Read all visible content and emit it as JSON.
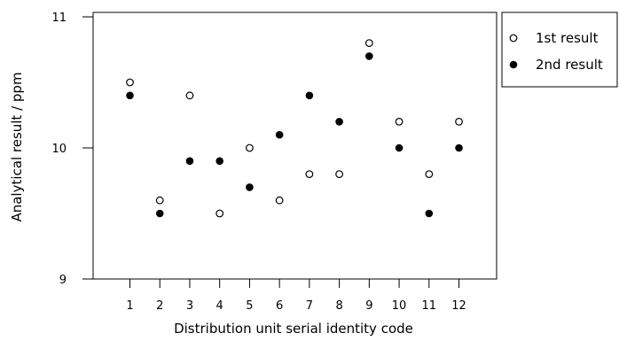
{
  "chart_data": {
    "type": "scatter",
    "title": "",
    "xlabel": "Distribution unit serial identity code",
    "ylabel": "Analytical result / ppm",
    "xlim": [
      0,
      13
    ],
    "ylim": [
      9,
      11
    ],
    "x_ticks": [
      "1",
      "2",
      "3",
      "4",
      "5",
      "6",
      "7",
      "8",
      "9",
      "10",
      "11",
      "12"
    ],
    "y_ticks": [
      "9",
      "10",
      "11"
    ],
    "grid": false,
    "legend_position": "top-right-outside",
    "series": [
      {
        "name": "1st result",
        "marker": "open-circle",
        "color": "#000000",
        "x": [
          1,
          2,
          3,
          4,
          5,
          6,
          7,
          8,
          9,
          10,
          11,
          12
        ],
        "y": [
          10.5,
          9.6,
          10.4,
          9.5,
          10.0,
          9.6,
          9.8,
          9.8,
          10.8,
          10.2,
          9.8,
          10.2
        ]
      },
      {
        "name": "2nd result",
        "marker": "filled-circle",
        "color": "#000000",
        "x": [
          1,
          2,
          3,
          4,
          5,
          6,
          7,
          8,
          9,
          10,
          11,
          12
        ],
        "y": [
          10.4,
          9.5,
          9.9,
          9.9,
          9.7,
          10.1,
          10.4,
          10.2,
          10.7,
          10.0,
          9.5,
          10.0
        ]
      }
    ]
  }
}
